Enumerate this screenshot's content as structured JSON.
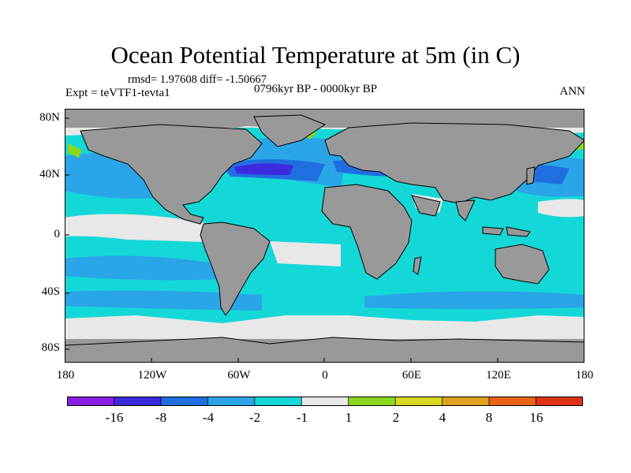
{
  "title": "Ocean Potential Temperature at 5m (in C)",
  "stats": "rmsd= 1.97608 diff= -1.50667",
  "experiment": "Expt = teVTF1-tevta1",
  "period": "0796kyr BP - 0000kyr BP",
  "season": "ANN",
  "map": {
    "projection": "cylindrical-equidistant",
    "lat_range": [
      -90,
      90
    ],
    "lon_range": [
      -180,
      180
    ],
    "y_ticks": [
      "80N",
      "40N",
      "0",
      "40S",
      "80S"
    ],
    "x_ticks": [
      "180",
      "120W",
      "60W",
      "0",
      "60E",
      "120E",
      "180"
    ]
  },
  "colorbar": {
    "colors": [
      "#8a1fe6",
      "#3c2ae0",
      "#1f6fe0",
      "#2aa5e8",
      "#14d8d8",
      "#e8e8e8",
      "#8ad81e",
      "#d8d81e",
      "#e0a01c",
      "#e86414",
      "#e03214"
    ],
    "labels": [
      "-16",
      "-8",
      "-4",
      "-2",
      "-1",
      "1",
      "2",
      "4",
      "8",
      "16"
    ],
    "land_color": "#999999"
  }
}
